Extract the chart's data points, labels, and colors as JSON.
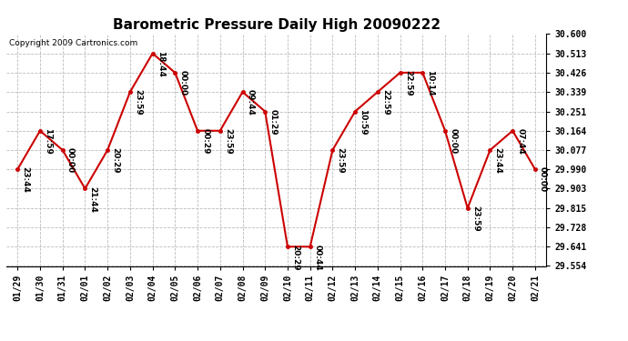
{
  "title": "Barometric Pressure Daily High 20090222",
  "copyright": "Copyright 2009 Cartronics.com",
  "x_labels": [
    "01/29",
    "01/30",
    "01/31",
    "02/01",
    "02/02",
    "02/03",
    "02/04",
    "02/05",
    "02/06",
    "02/07",
    "02/08",
    "02/09",
    "02/10",
    "02/11",
    "02/12",
    "02/13",
    "02/14",
    "02/15",
    "02/16",
    "02/17",
    "02/18",
    "02/19",
    "02/20",
    "02/21"
  ],
  "y_values": [
    29.99,
    30.164,
    30.077,
    29.903,
    30.077,
    30.339,
    30.513,
    30.426,
    30.164,
    30.164,
    30.339,
    30.251,
    29.641,
    29.641,
    30.077,
    30.251,
    30.339,
    30.426,
    30.426,
    30.164,
    29.815,
    30.077,
    30.164,
    29.99
  ],
  "time_labels": [
    "23:44",
    "17:59",
    "00:00",
    "21:44",
    "20:29",
    "23:59",
    "18:44",
    "00:00",
    "00:29",
    "23:59",
    "09:44",
    "01:29",
    "20:29",
    "00:44",
    "23:59",
    "10:59",
    "22:59",
    "22:59",
    "10:14",
    "00:00",
    "23:59",
    "23:44",
    "07:44",
    "00:00"
  ],
  "y_min": 29.554,
  "y_max": 30.6,
  "y_ticks": [
    29.554,
    29.641,
    29.728,
    29.815,
    29.903,
    29.99,
    30.077,
    30.164,
    30.251,
    30.339,
    30.426,
    30.513,
    30.6
  ],
  "line_color": "#cc0000",
  "marker_color": "#cc0000",
  "background_color": "#ffffff",
  "grid_color": "#bbbbbb",
  "title_fontsize": 11,
  "label_fontsize": 6.5,
  "tick_fontsize": 7,
  "copyright_fontsize": 6.5
}
